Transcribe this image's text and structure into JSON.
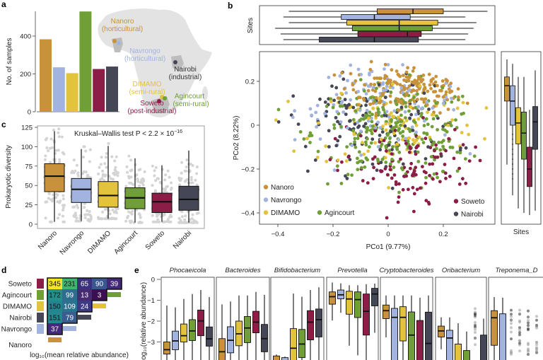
{
  "colors": {
    "Nanoro": "#c8923a",
    "Navrongo": "#a2b3e0",
    "DIMAMO": "#e3c33b",
    "Agincourt": "#6f9f36",
    "Soweto": "#8c1d47",
    "Nairobi": "#454757"
  },
  "panel_letters": {
    "a": "a",
    "b": "b",
    "c": "c",
    "d": "d",
    "e": "e"
  },
  "map": {
    "labels": [
      {
        "site": "Nanoro",
        "line1": "Nanoro",
        "line2": "(horticultural)"
      },
      {
        "site": "Navrongo",
        "line1": "Navrongo",
        "line2": "(horticultural)"
      },
      {
        "site": "Nairobi",
        "line1": "Nairobi",
        "line2": "(industrial)"
      },
      {
        "site": "DIMAMO",
        "line1": "DIMAMO",
        "line2": "(semi-rural)"
      },
      {
        "site": "Agincourt",
        "line1": "Agincourt",
        "line2": "(semi-rural)"
      },
      {
        "site": "Soweto",
        "line1": "Soweto",
        "line2": "(post-industrial)"
      }
    ]
  },
  "chart_data": [
    {
      "panel": "a",
      "type": "bar",
      "ylabel": "No. of samples",
      "yticks": [
        "0",
        "200",
        "400"
      ],
      "ylim": [
        0,
        560
      ],
      "categories": [
        "Nanoro",
        "Navrongo",
        "DIMAMO",
        "Agincourt",
        "Soweto",
        "Nairobi"
      ],
      "values": [
        383,
        235,
        204,
        530,
        226,
        239
      ]
    },
    {
      "panel": "b",
      "type": "scatter",
      "xlabel": "PCo1 (9.77%)",
      "ylabel": "PCo2 (8.22%)",
      "xticks": [
        "−0.4",
        "−0.2",
        "0",
        "0.2"
      ],
      "yticks": [
        "0.2",
        "0",
        "−0.2",
        "−0.4"
      ],
      "xlim": [
        -0.46,
        0.39
      ],
      "ylim": [
        -0.45,
        0.34
      ],
      "legend": [
        "Nanoro",
        "Navrongo",
        "DIMAMO",
        "Agincourt",
        "Soweto",
        "Nairobi"
      ],
      "legend_placement": "bottom",
      "marginal_label": "Sites",
      "marginal_pco1_boxes": {
        "Nanoro": [
          -0.36,
          -0.04,
          0.09,
          0.2,
          0.36
        ],
        "Navrongo": [
          -0.38,
          -0.17,
          -0.05,
          0.08,
          0.28
        ],
        "DIMAMO": [
          -0.36,
          -0.15,
          0.04,
          0.18,
          0.32
        ],
        "Agincourt": [
          -0.41,
          -0.13,
          0.04,
          0.16,
          0.31
        ],
        "Soweto": [
          -0.39,
          -0.11,
          0.07,
          0.12,
          0.29
        ],
        "Nairobi": [
          -0.38,
          -0.25,
          -0.05,
          0.11,
          0.28
        ]
      },
      "marginal_pco2_boxes": {
        "Nanoro": [
          -0.18,
          0.11,
          0.18,
          0.22,
          0.3
        ],
        "Navrongo": [
          -0.32,
          0.0,
          0.11,
          0.18,
          0.28
        ],
        "DIMAMO": [
          -0.38,
          -0.085,
          0.01,
          0.08,
          0.22
        ],
        "Agincourt": [
          -0.4,
          -0.155,
          -0.036,
          0.06,
          0.22
        ],
        "Soweto": [
          -0.41,
          -0.28,
          -0.2,
          -0.1,
          0.07
        ],
        "Nairobi": [
          -0.39,
          -0.11,
          0.015,
          0.085,
          0.25
        ]
      }
    },
    {
      "panel": "c",
      "type": "box",
      "ylabel": "Prokaryotic diversity",
      "annotation": "Kruskal–Wallis test P < 2.2 × 10",
      "annotation_exp": "−16",
      "yticks": [
        "0",
        "25",
        "50",
        "75",
        "100",
        "125"
      ],
      "ylim": [
        0,
        125
      ],
      "categories": [
        "Nanoro",
        "Navrongo",
        "DIMAMO",
        "Agincourt",
        "Soweto",
        "Nairobi"
      ],
      "boxes": [
        [
          3,
          42,
          62,
          78,
          120
        ],
        [
          4,
          28,
          45,
          59,
          97
        ],
        [
          7,
          22,
          37,
          55,
          101
        ],
        [
          2,
          20,
          34,
          47,
          85
        ],
        [
          3,
          15,
          29,
          40,
          76
        ],
        [
          2,
          18,
          32,
          49,
          95
        ]
      ]
    },
    {
      "panel": "d",
      "type": "heatmap",
      "xlabel": "log₁₀(mean relative abundance)",
      "rows": [
        "Soweto",
        "Agincourt",
        "DIMAMO",
        "Nairobi",
        "Navrongo"
      ],
      "columns": [
        "Nanoro",
        "Navrongo",
        "Nairobi",
        "DIMAMO",
        "Agincourt"
      ],
      "bottom_label": "Nanoro",
      "values": [
        [
          345,
          231,
          65,
          90,
          39
        ],
        [
          172,
          99,
          13,
          3
        ],
        [
          150,
          109,
          24
        ],
        [
          151,
          79
        ],
        [
          37
        ]
      ],
      "cell_colors": [
        [
          "#f3e526",
          "#3fb56f",
          "#3b2f80",
          "#3a5890",
          "#43287a"
        ],
        [
          "#22908c",
          "#2e6d8e",
          "#472a70",
          "#3b0f52"
        ],
        [
          "#25858e",
          "#2c728e",
          "#3d3a85"
        ],
        [
          "#23898e",
          "#3a5d8f"
        ],
        [
          "#45297a"
        ]
      ]
    },
    {
      "panel": "e",
      "type": "box",
      "ylabel": "log₁₀(relative abundance)",
      "yticks": [
        "0",
        "−1",
        "−2",
        "−3"
      ],
      "ylim": [
        -3.8,
        0.1
      ],
      "series_order": [
        "Nanoro",
        "Navrongo",
        "DIMAMO",
        "Agincourt",
        "Soweto",
        "Nairobi"
      ],
      "genera": [
        {
          "name": "Phocaeicola",
          "boxes": [
            [
              -4.5,
              -3.58,
              -3.37,
              -3.0,
              -1.25
            ],
            [
              -4.5,
              -3.37,
              -2.95,
              -2.48,
              -1.34
            ],
            [
              -4.5,
              -3.0,
              -2.7,
              -2.14,
              -0.94
            ],
            [
              -4.5,
              -2.93,
              -2.47,
              -1.93,
              -0.7
            ],
            [
              -4.5,
              -2.7,
              -1.99,
              -1.47,
              -0.51
            ],
            [
              -4.5,
              -3.2,
              -2.85,
              -2.28,
              -0.85
            ]
          ]
        },
        {
          "name": "Bacteroides",
          "boxes": [
            [
              -4.5,
              -4.2,
              -3.47,
              -2.84,
              -1.2
            ],
            [
              -4.5,
              -3.52,
              -2.92,
              -2.27,
              -1.06
            ],
            [
              -4.5,
              -3.18,
              -2.61,
              -2.0,
              -0.77
            ],
            [
              -4.5,
              -3.03,
              -2.33,
              -1.78,
              -0.77
            ],
            [
              -4.5,
              -2.56,
              -2.05,
              -1.53,
              -0.6
            ],
            [
              -4.5,
              -3.47,
              -2.84,
              -2.16,
              -0.74
            ]
          ]
        },
        {
          "name": "Bifidobacterium",
          "boxes": [
            [
              -4.5,
              -4.5,
              -4.2,
              -3.67,
              -3.6
            ],
            [
              -4.5,
              -4.5,
              -4.2,
              -3.75,
              -3.7
            ],
            [
              -4.5,
              -4.0,
              -3.3,
              -2.36,
              -0.68
            ],
            [
              -4.5,
              -3.75,
              -3.1,
              -2.4,
              -0.83
            ],
            [
              -4.5,
              -2.9,
              -2.05,
              -1.5,
              -0.51
            ],
            [
              -4.5,
              -2.76,
              -1.93,
              -1.42,
              -0.38
            ]
          ]
        },
        {
          "name": "Prevotella",
          "boxes": [
            [
              -1.97,
              -1.19,
              -0.83,
              -0.6,
              -0.15
            ],
            [
              -1.6,
              -0.93,
              -0.74,
              -0.51,
              -0.19
            ],
            [
              -3.18,
              -1.67,
              -0.94,
              -0.57,
              -0.28
            ],
            [
              -3.64,
              -1.83,
              -0.97,
              -0.6,
              -0.28
            ],
            [
              -4.5,
              -2.67,
              -1.53,
              -0.7,
              -0.23
            ],
            [
              -2.56,
              -1.27,
              -0.7,
              -0.43,
              -0.2
            ]
          ]
        },
        {
          "name": "Cryptobacteroides",
          "boxes": [
            [
              -2.78,
              -1.88,
              -1.5,
              -1.23,
              -0.77
            ],
            [
              -4.5,
              -4.5,
              -1.82,
              -1.39,
              -0.77
            ],
            [
              -4.5,
              -2.95,
              -1.82,
              -1.31,
              -0.77
            ],
            [
              -4.5,
              -4.5,
              -2.67,
              -1.56,
              -0.77
            ],
            [
              -4.5,
              -4.5,
              -4.2,
              -1.97,
              -0.88
            ],
            [
              -4.5,
              -4.5,
              -3.07,
              -1.57,
              -0.77
            ]
          ]
        },
        {
          "name": "Oribacterium",
          "boxes": [
            [
              -3.35,
              -2.76,
              -2.47,
              -2.24,
              -1.82
            ],
            [
              -4.5,
              -4.5,
              -2.81,
              -2.44,
              -1.82
            ],
            [
              -4.5,
              -4.5,
              -4.2,
              -3.1,
              -2.1
            ],
            [
              -4.5,
              -4.5,
              -4.2,
              -3.41,
              -2.5
            ],
            null,
            [
              -4.5,
              -4.5,
              -4.2,
              -2.67,
              -1.88
            ]
          ]
        },
        {
          "name": "Treponema_D",
          "boxes": [
            [
              -4.5,
              -3.16,
              -1.84,
              -1.5,
              -0.85
            ],
            [
              -4.5,
              -4.5,
              -4.2,
              -1.65,
              -0.88
            ],
            null,
            null,
            null,
            null
          ]
        }
      ]
    }
  ]
}
